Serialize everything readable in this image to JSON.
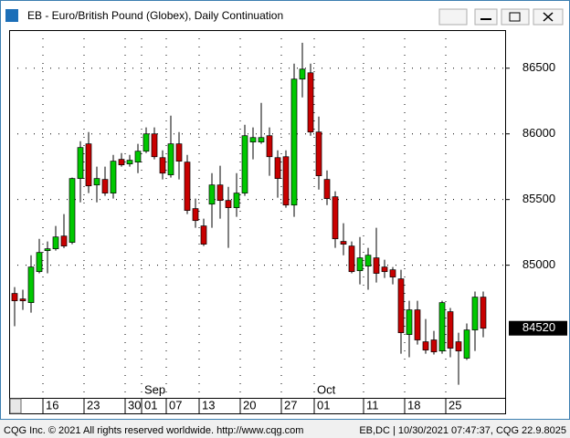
{
  "chart_data": {
    "type": "candlestick",
    "title": "EB - Euro/British Pound (Globex), Daily Continuation",
    "open": [
      84785,
      84743,
      84715,
      84951,
      85111,
      85125,
      85222,
      85174,
      85660,
      85924,
      85611,
      85653,
      85549,
      85806,
      85771,
      85785,
      85868,
      86000,
      85819,
      85688,
      85924,
      85785,
      85431,
      85299,
      85465,
      85611,
      85493,
      85438,
      85549,
      85938,
      85938,
      85986,
      85819,
      85826,
      85458,
      86417,
      86465,
      86014,
      85653,
      85521,
      85181,
      85146,
      84958,
      84993,
      85056,
      84986,
      84965,
      84896,
      84472,
      84660,
      84417,
      84431,
      84347,
      84646,
      84417,
      84292,
      84507,
      84757
    ],
    "high": [
      84833,
      84813,
      85076,
      85201,
      85181,
      85299,
      85389,
      85667,
      85944,
      86014,
      85750,
      85750,
      85840,
      85854,
      85840,
      85924,
      86049,
      86049,
      85875,
      86139,
      86014,
      85840,
      85507,
      85354,
      85701,
      85757,
      85597,
      85701,
      86069,
      86049,
      86236,
      86049,
      85875,
      85875,
      86535,
      86694,
      86535,
      86132,
      85722,
      85563,
      85320,
      85181,
      85215,
      85132,
      85285,
      85042,
      84986,
      84965,
      84729,
      84729,
      84590,
      84500,
      84729,
      84674,
      84486,
      84556,
      84799,
      84799
    ],
    "low": [
      84535,
      84660,
      84639,
      84938,
      84938,
      85111,
      85130,
      85160,
      85479,
      85549,
      85479,
      85528,
      85507,
      85750,
      85750,
      85701,
      85854,
      85806,
      85653,
      85667,
      85653,
      85389,
      85285,
      85146,
      85285,
      85354,
      85132,
      85368,
      85528,
      85806,
      85924,
      85681,
      85514,
      85438,
      85368,
      86278,
      85986,
      85576,
      85458,
      85132,
      85076,
      84938,
      84854,
      84813,
      84868,
      84903,
      84854,
      84326,
      84299,
      84396,
      84326,
      84320,
      84326,
      84299,
      84090,
      84278,
      84347,
      84451
    ],
    "close": [
      84729,
      84729,
      84986,
      85097,
      85125,
      85215,
      85146,
      85660,
      85896,
      85604,
      85660,
      85549,
      85792,
      85764,
      85799,
      85868,
      86000,
      85826,
      85701,
      85924,
      85792,
      85417,
      85340,
      85160,
      85611,
      85493,
      85438,
      85549,
      85986,
      85972,
      85972,
      85826,
      85660,
      85458,
      86417,
      86493,
      86014,
      85681,
      85507,
      85201,
      85160,
      84951,
      85056,
      85076,
      84938,
      84951,
      84910,
      84486,
      84660,
      84431,
      84354,
      84340,
      84715,
      84368,
      84347,
      84507,
      84757,
      84520
    ],
    "up_color": "#00c800",
    "down_color": "#c80000",
    "ylim": [
      83990,
      86790
    ],
    "yticks": [
      85000,
      85500,
      86000,
      86500
    ],
    "last": 84520,
    "grid": true,
    "xticks": [
      {
        "value": 4,
        "label": "16"
      },
      {
        "value": 9,
        "label": "23"
      },
      {
        "value": 14,
        "label": "30"
      },
      {
        "value": 16,
        "label": "01"
      },
      {
        "value": 19,
        "label": "07"
      },
      {
        "value": 23,
        "label": "13"
      },
      {
        "value": 28,
        "label": "20"
      },
      {
        "value": 33,
        "label": "27"
      },
      {
        "value": 37,
        "label": "01"
      },
      {
        "value": 43,
        "label": "11"
      },
      {
        "value": 48,
        "label": "18"
      },
      {
        "value": 53,
        "label": "25"
      }
    ],
    "month_labels": [
      {
        "value": 16,
        "label": "Sep"
      },
      {
        "value": 37,
        "label": "Oct"
      }
    ],
    "footer_left": "CQG Inc. © 2021 All rights reserved worldwide. http://www.cqg.com",
    "footer_right": "EB,DC | 10/30/2021 07:47:37, CQG 22.9.8025"
  }
}
